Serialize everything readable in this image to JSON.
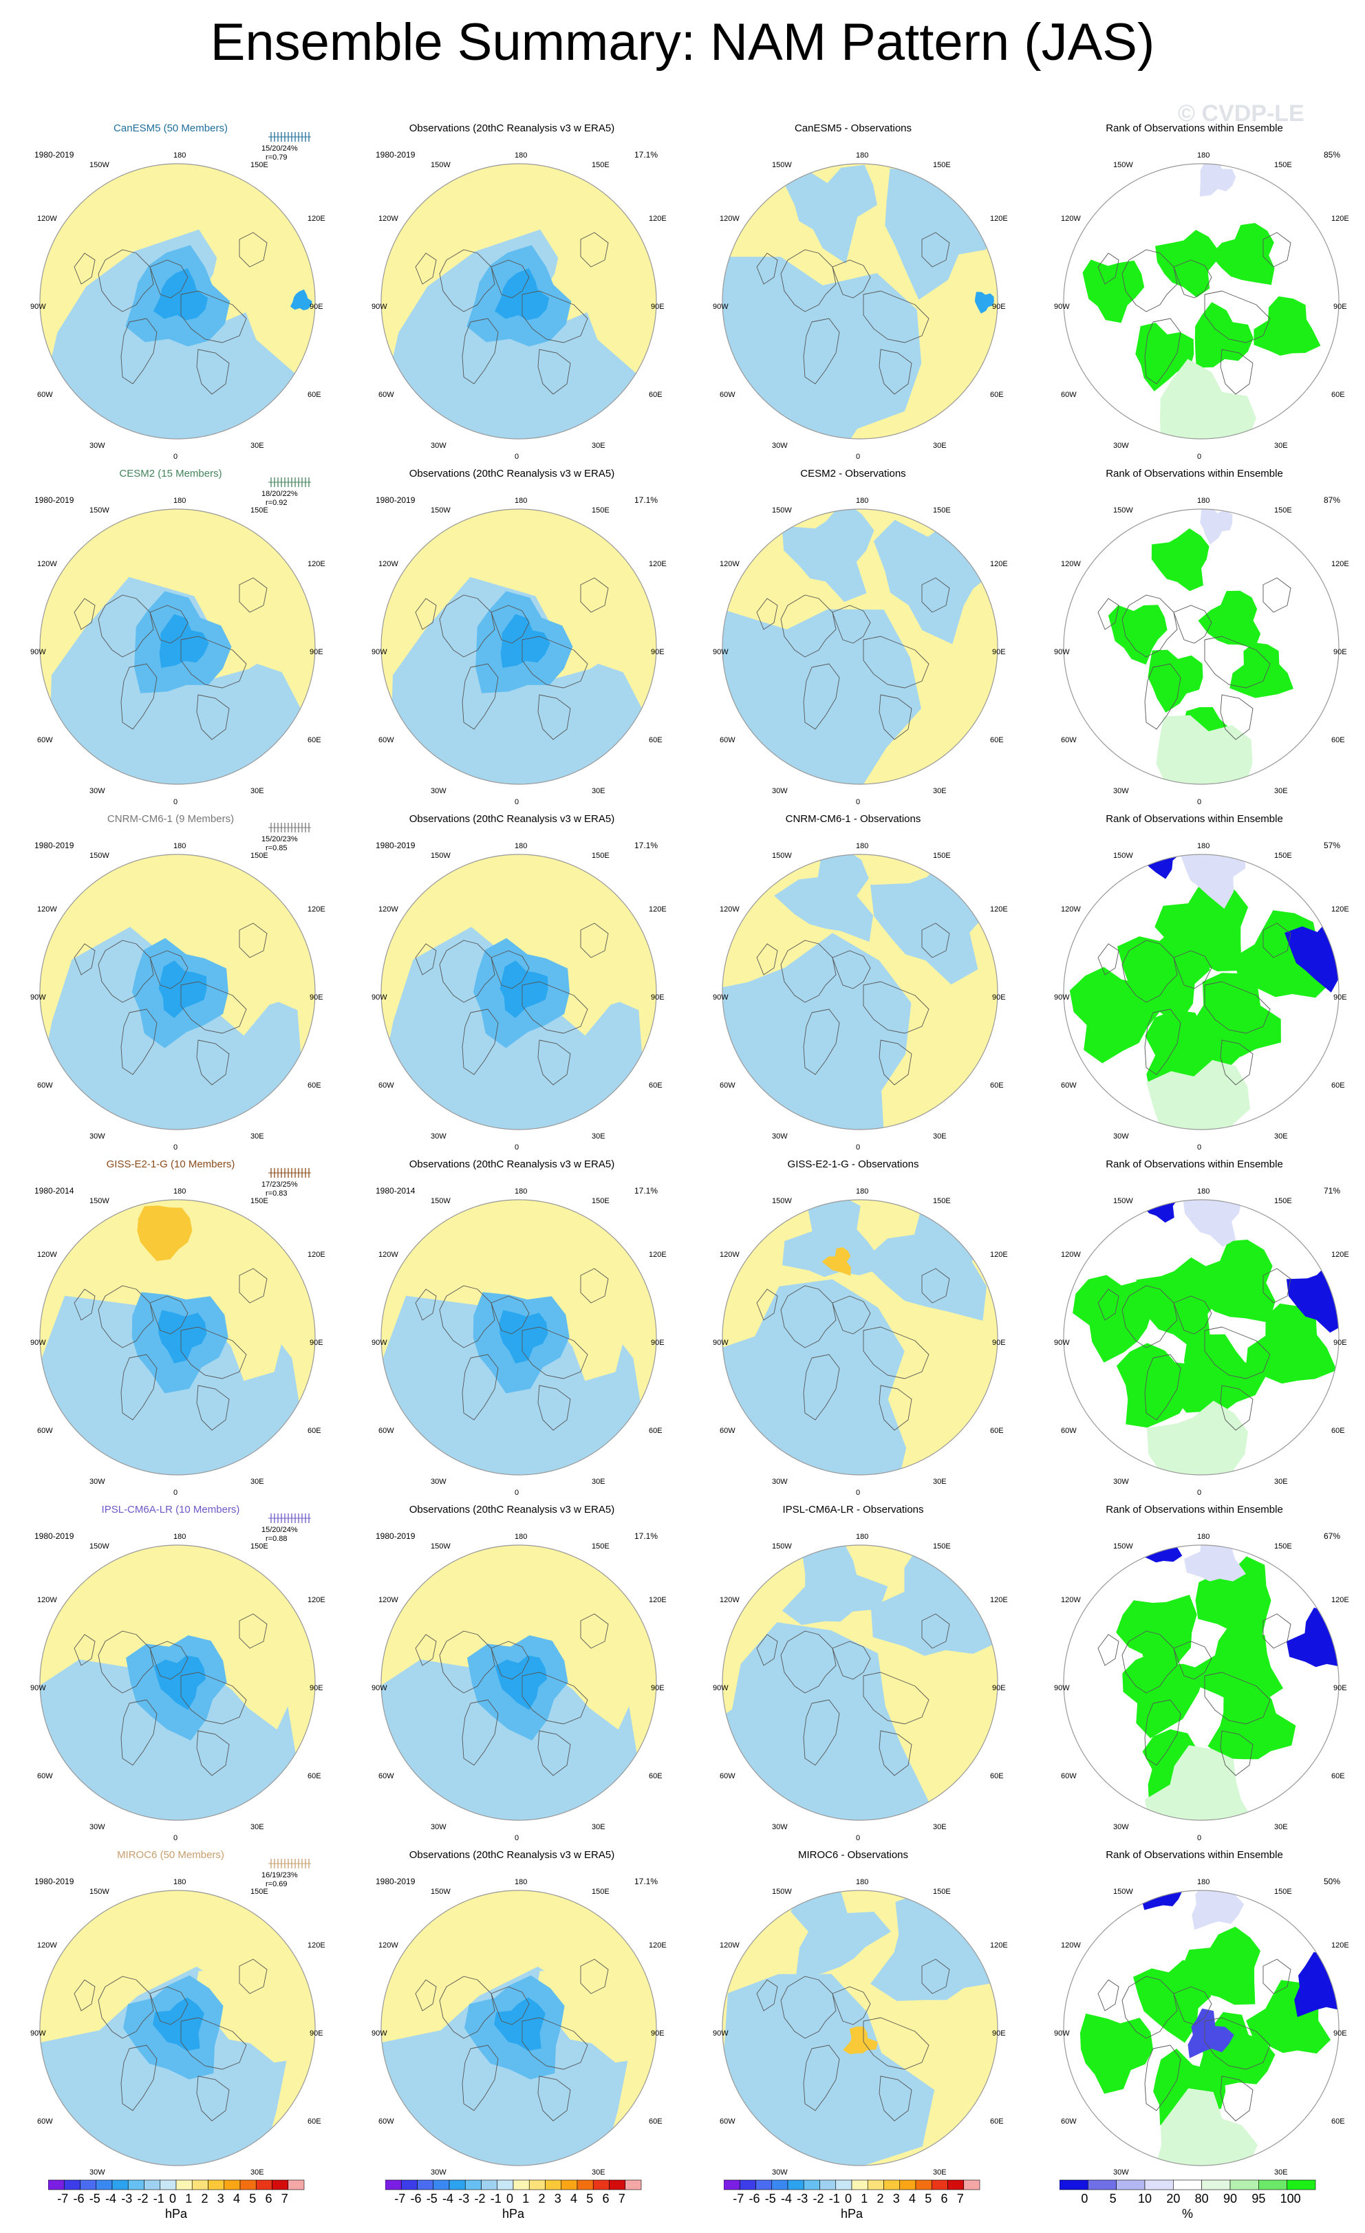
{
  "title": "Ensemble Summary: NAM Pattern (JAS)",
  "watermark": "© CVDP-LE",
  "obs_title": "Observations (20thC Reanalysis v3 w ERA5)",
  "obs_pct": "17.1%",
  "rank_title": "Rank of Observations within Ensemble",
  "lon_labels": {
    "n": "180",
    "nw": "150W",
    "ne": "150E",
    "w120": "120W",
    "e120": "120E",
    "w90": "90W",
    "e90": "90E",
    "w60": "60W",
    "e60": "60E",
    "w30": "30W",
    "e30": "30E",
    "s": "0"
  },
  "colors": {
    "blue": "#a7d7ef",
    "yellow": "#fbf4a2",
    "mid_blue": "#61bdf0",
    "deep_blue": "#2aa7ef",
    "orange": "#fac937",
    "green": "#1bef16",
    "rank_blue": "#1111e2",
    "light_purple": "#dcdff8",
    "light_green": "#d6f8d4",
    "map_ring": "#999999"
  },
  "rows": [
    {
      "model": "CanESM5 (50 Members)",
      "model_color": "#1f6e9b",
      "period": "1980-2019",
      "stats1": "15/20/24%",
      "stats2": "r=0.79",
      "diff_title": "CanESM5 - Observations",
      "rank_pct": "85%",
      "variant": 0
    },
    {
      "model": "CESM2 (15 Members)",
      "model_color": "#44835a",
      "period": "1980-2019",
      "stats1": "18/20/22%",
      "stats2": "r=0.92",
      "diff_title": "CESM2 - Observations",
      "rank_pct": "87%",
      "variant": 1
    },
    {
      "model": "CNRM-CM6-1 (9 Members)",
      "model_color": "#777777",
      "period": "1980-2019",
      "stats1": "15/20/23%",
      "stats2": "r=0.85",
      "diff_title": "CNRM-CM6-1 - Observations",
      "rank_pct": "57%",
      "variant": 2
    },
    {
      "model": "GISS-E2-1-G (10 Members)",
      "model_color": "#8a4b1a",
      "period": "1980-2014",
      "stats1": "17/23/25%",
      "stats2": "r=0.83",
      "diff_title": "GISS-E2-1-G - Observations",
      "rank_pct": "71%",
      "variant": 3
    },
    {
      "model": "IPSL-CM6A-LR (10 Members)",
      "model_color": "#6e58c8",
      "period": "1980-2019",
      "stats1": "15/20/24%",
      "stats2": "r=0.88",
      "diff_title": "IPSL-CM6A-LR - Observations",
      "rank_pct": "67%",
      "variant": 4
    },
    {
      "model": "MIROC6 (50 Members)",
      "model_color": "#c79e6e",
      "period": "1980-2019",
      "stats1": "16/19/23%",
      "stats2": "r=0.69",
      "diff_title": "MIROC6 - Observations",
      "rank_pct": "50%",
      "variant": 5
    }
  ],
  "colorbar_hpa": {
    "ticks": [
      "-7",
      "-6",
      "-5",
      "-4",
      "-3",
      "-2",
      "-1",
      "0",
      "1",
      "2",
      "3",
      "4",
      "5",
      "6",
      "7"
    ],
    "unit": "hPa",
    "colors": [
      "#7b1ee4",
      "#3c3ce8",
      "#4a6cf0",
      "#3c88f3",
      "#2da3ef",
      "#66c0f2",
      "#9fd2f0",
      "#c8e7f6",
      "#fbf6b4",
      "#fbe27a",
      "#fbc83a",
      "#f9a516",
      "#f27010",
      "#e83616",
      "#d40c0c",
      "#f4a7a7"
    ]
  },
  "colorbar_rank": {
    "ticks": [
      "0",
      "5",
      "10",
      "20",
      "80",
      "90",
      "95",
      "100"
    ],
    "unit": "%",
    "colors": [
      "#1111e2",
      "#6f6fe8",
      "#b3b8f3",
      "#dde0f8",
      "#ffffff",
      "#e2f7e0",
      "#b4f0b0",
      "#6ce868",
      "#1bef16"
    ]
  }
}
